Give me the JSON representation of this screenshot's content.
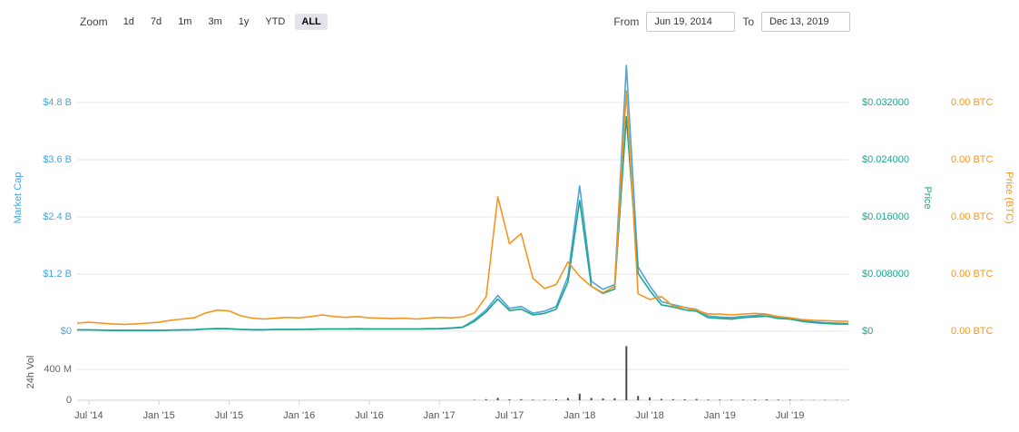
{
  "toolbar": {
    "zoom_label": "Zoom",
    "zoom_options": [
      "1d",
      "7d",
      "1m",
      "3m",
      "1y",
      "YTD",
      "ALL"
    ],
    "zoom_active": "ALL",
    "from_label": "From",
    "from_value": "Jun 19, 2014",
    "to_label": "To",
    "to_value": "Dec 13, 2019"
  },
  "colors": {
    "market_cap": "#4AA6D9",
    "price": "#1FA58C",
    "price_btc": "#F7941E",
    "volume_bar": "#4a4a4a",
    "gridline": "#e6e6e6",
    "axis_line": "#d0d0d0",
    "tick_gray": "#666666"
  },
  "chart_data": {
    "type": "line",
    "title": "",
    "x_range": [
      "Jun 19, 2014",
      "Dec 13, 2019"
    ],
    "x_tick_labels": [
      "Jul '14",
      "Jan '15",
      "Jul '15",
      "Jan '16",
      "Jul '16",
      "Jan '17",
      "Jul '17",
      "Jan '18",
      "Jul '18",
      "Jan '19",
      "Jul '19"
    ],
    "legend": "none",
    "grid": "horizontal",
    "axes": {
      "market_cap": {
        "title": "Market Cap",
        "color": "#4AA6D9",
        "ticks": [
          "$4.8 B",
          "$3.6 B",
          "$2.4 B",
          "$1.2 B",
          "$0"
        ],
        "tick_values_billion": [
          4.8,
          3.6,
          2.4,
          1.2,
          0
        ]
      },
      "price": {
        "title": "Price",
        "color": "#1FA58C",
        "ticks": [
          "$0.032000",
          "$0.024000",
          "$0.016000",
          "$0.008000",
          "$0"
        ],
        "tick_values": [
          0.032,
          0.024,
          0.016,
          0.008,
          0
        ]
      },
      "price_btc": {
        "title": "Price (BTC)",
        "color": "#F7941E",
        "ticks": [
          "0.00 BTC",
          "0.00 BTC",
          "0.00 BTC",
          "0.00 BTC",
          "0.00 BTC"
        ]
      },
      "volume": {
        "title": "24h Vol",
        "color": "#666666",
        "ticks": [
          "400 M",
          "0"
        ],
        "tick_values_million": [
          400,
          0
        ]
      }
    },
    "months": [
      "2014-06",
      "2014-07",
      "2014-08",
      "2014-09",
      "2014-10",
      "2014-11",
      "2014-12",
      "2015-01",
      "2015-02",
      "2015-03",
      "2015-04",
      "2015-05",
      "2015-06",
      "2015-07",
      "2015-08",
      "2015-09",
      "2015-10",
      "2015-11",
      "2015-12",
      "2016-01",
      "2016-02",
      "2016-03",
      "2016-04",
      "2016-05",
      "2016-06",
      "2016-07",
      "2016-08",
      "2016-09",
      "2016-10",
      "2016-11",
      "2016-12",
      "2017-01",
      "2017-02",
      "2017-03",
      "2017-04",
      "2017-05",
      "2017-06",
      "2017-07",
      "2017-08",
      "2017-09",
      "2017-10",
      "2017-11",
      "2017-12",
      "2018-01",
      "2018-02",
      "2018-03",
      "2018-04",
      "2018-05",
      "2018-06",
      "2018-07",
      "2018-08",
      "2018-09",
      "2018-10",
      "2018-11",
      "2018-12",
      "2019-01",
      "2019-02",
      "2019-03",
      "2019-04",
      "2019-05",
      "2019-06",
      "2019-07",
      "2019-08",
      "2019-09",
      "2019-10",
      "2019-11",
      "2019-12"
    ],
    "series": [
      {
        "name": "Market Cap",
        "unit": "USD billions",
        "color": "#4AA6D9",
        "ylim": [
          0,
          5.6
        ],
        "values": [
          0.03,
          0.03,
          0.025,
          0.02,
          0.02,
          0.02,
          0.02,
          0.02,
          0.025,
          0.03,
          0.035,
          0.05,
          0.06,
          0.055,
          0.04,
          0.035,
          0.035,
          0.04,
          0.04,
          0.04,
          0.045,
          0.05,
          0.05,
          0.05,
          0.055,
          0.05,
          0.05,
          0.05,
          0.05,
          0.05,
          0.055,
          0.06,
          0.07,
          0.09,
          0.24,
          0.45,
          0.75,
          0.48,
          0.52,
          0.38,
          0.42,
          0.52,
          1.15,
          3.05,
          1.05,
          0.88,
          0.98,
          5.58,
          1.35,
          0.95,
          0.62,
          0.56,
          0.5,
          0.46,
          0.32,
          0.3,
          0.29,
          0.31,
          0.33,
          0.35,
          0.3,
          0.28,
          0.23,
          0.2,
          0.18,
          0.17,
          0.16
        ]
      },
      {
        "name": "Price",
        "unit": "USD",
        "color": "#1FA58C",
        "ylim": [
          0,
          0.037333
        ],
        "values": [
          0.0002,
          0.0002,
          0.00015,
          0.00012,
          0.00012,
          0.00012,
          0.00012,
          0.00012,
          0.00015,
          0.00018,
          0.0002,
          0.0003,
          0.00035,
          0.00033,
          0.00025,
          0.0002,
          0.0002,
          0.00025,
          0.00025,
          0.00025,
          0.00027,
          0.0003,
          0.0003,
          0.0003,
          0.00033,
          0.0003,
          0.0003,
          0.0003,
          0.0003,
          0.0003,
          0.00033,
          0.00036,
          0.00042,
          0.00055,
          0.0014,
          0.0027,
          0.0045,
          0.0029,
          0.0031,
          0.0023,
          0.0025,
          0.0031,
          0.0069,
          0.0183,
          0.0063,
          0.0053,
          0.0059,
          0.03,
          0.0081,
          0.0057,
          0.0037,
          0.0034,
          0.003,
          0.0028,
          0.0019,
          0.0018,
          0.0017,
          0.0019,
          0.002,
          0.0021,
          0.0018,
          0.0017,
          0.0014,
          0.0012,
          0.0011,
          0.001,
          0.001
        ]
      },
      {
        "name": "Price (BTC)",
        "unit": "BTC",
        "color": "#F7941E",
        "ylim": [
          0,
          6.55e-06
        ],
        "values": [
          2e-07,
          2.2e-07,
          2e-07,
          1.8e-07,
          1.7e-07,
          1.8e-07,
          2e-07,
          2.2e-07,
          2.7e-07,
          3e-07,
          3.3e-07,
          4.5e-07,
          5.2e-07,
          5e-07,
          3.8e-07,
          3.2e-07,
          3e-07,
          3.2e-07,
          3.4e-07,
          3.3e-07,
          3.6e-07,
          4e-07,
          3.6e-07,
          3.4e-07,
          3.6e-07,
          3.3e-07,
          3.2e-07,
          3.1e-07,
          3.2e-07,
          3e-07,
          3.2e-07,
          3.4e-07,
          3.3e-07,
          3.5e-07,
          4.5e-07,
          8.5e-07,
          3.3e-06,
          2.15e-06,
          2.4e-06,
          1.3e-06,
          1.05e-06,
          1.15e-06,
          1.7e-06,
          1.35e-06,
          1.1e-06,
          9.5e-07,
          1.1e-06,
          5.9e-06,
          9.2e-07,
          7.8e-07,
          8.5e-07,
          6.2e-07,
          5.8e-07,
          5.2e-07,
          4.2e-07,
          4.2e-07,
          4e-07,
          4.2e-07,
          4.4e-07,
          4.2e-07,
          3.6e-07,
          3.3e-07,
          2.9e-07,
          2.7e-07,
          2.6e-07,
          2.5e-07,
          2.4e-07
        ]
      }
    ],
    "volume_series": {
      "name": "24h Vol",
      "type": "bar",
      "unit": "USD millions",
      "color": "#4a4a4a",
      "ylim": [
        0,
        705
      ],
      "values": [
        0.3,
        0.3,
        0.2,
        0.2,
        0.2,
        0.3,
        0.3,
        0.3,
        0.4,
        0.5,
        0.5,
        0.8,
        1.0,
        0.8,
        0.5,
        0.4,
        0.4,
        0.5,
        0.5,
        0.5,
        0.5,
        0.6,
        0.6,
        0.6,
        0.7,
        0.6,
        0.5,
        0.5,
        0.5,
        0.6,
        0.7,
        0.8,
        1.0,
        1.5,
        6,
        14,
        30,
        12,
        14,
        8,
        7,
        12,
        28,
        85,
        30,
        22,
        26,
        700,
        55,
        38,
        18,
        14,
        12,
        16,
        8,
        8,
        7,
        8,
        9,
        10,
        8,
        7,
        5,
        4,
        4,
        3,
        3
      ]
    }
  }
}
